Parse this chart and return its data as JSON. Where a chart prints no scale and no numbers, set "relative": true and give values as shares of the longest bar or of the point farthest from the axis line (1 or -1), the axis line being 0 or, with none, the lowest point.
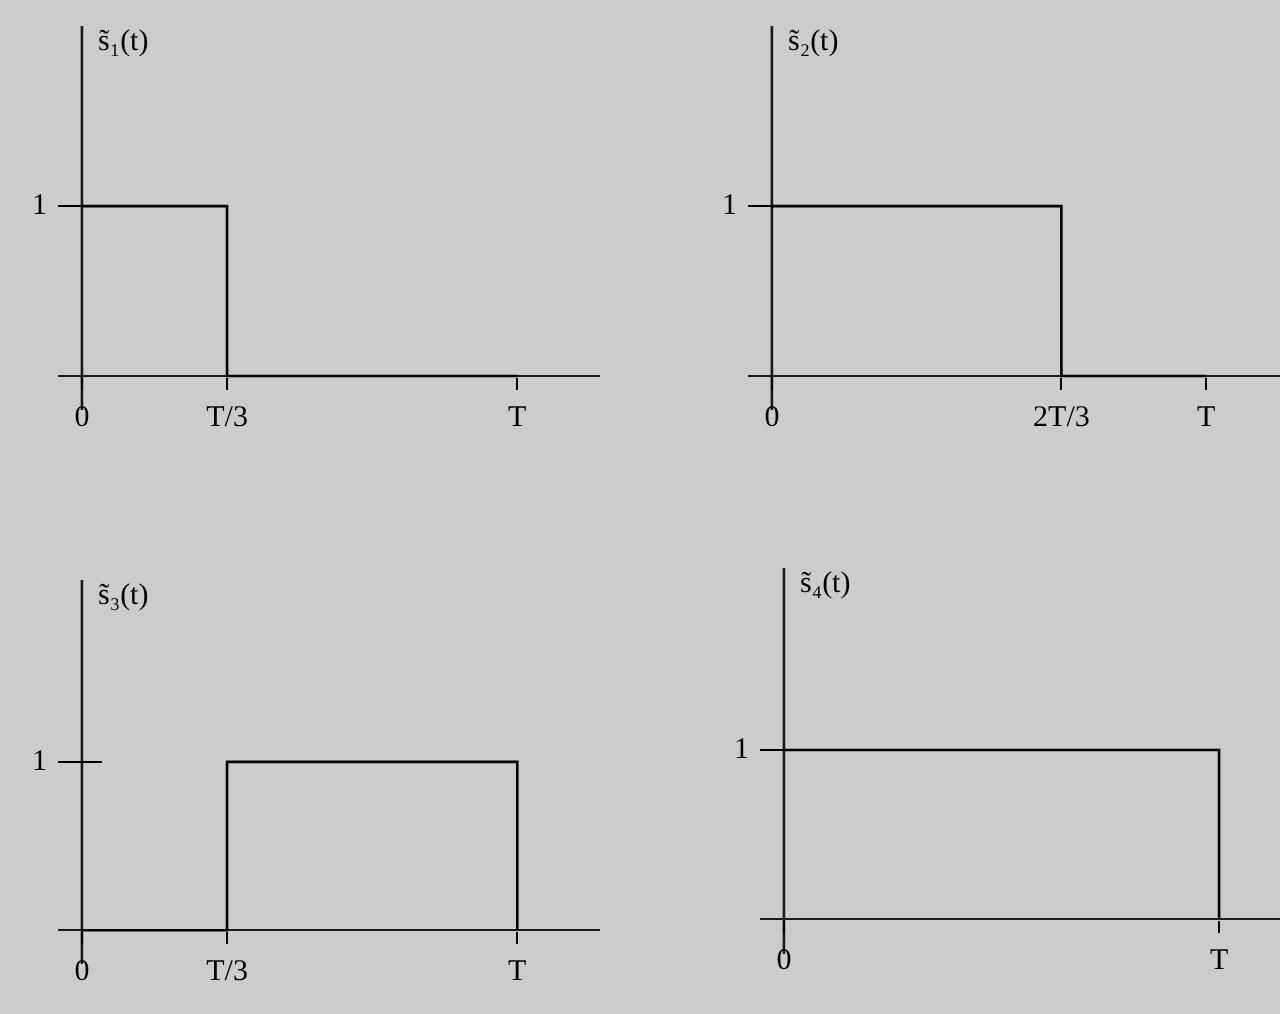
{
  "chart_data": [
    {
      "type": "step",
      "relative": true,
      "ylabel": "s̃₁(t)",
      "categories": [
        "0",
        "T/3",
        null,
        "T"
      ],
      "values": [
        1,
        0,
        0,
        0
      ],
      "color": "#000000",
      "annotations": [
        "1"
      ]
    },
    {
      "type": "step",
      "relative": true,
      "ylabel": "s̃₂(t)",
      "categories": [
        "0",
        null,
        "2T/3",
        "T"
      ],
      "values": [
        1,
        1,
        0,
        0
      ],
      "color": "#000000",
      "annotations": [
        "1"
      ]
    },
    {
      "type": "step",
      "relative": true,
      "ylabel": "s̃₃(t)",
      "categories": [
        "0",
        "T/3",
        null,
        "T"
      ],
      "values": [
        0,
        1,
        1,
        0
      ],
      "color": "#000000",
      "annotations": [
        "1"
      ]
    },
    {
      "type": "step",
      "relative": true,
      "ylabel": "s̃₄(t)",
      "categories": [
        "0",
        null,
        null,
        "T"
      ],
      "values": [
        1,
        1,
        1,
        0
      ],
      "color": "#000000",
      "annotations": [
        "1"
      ]
    }
  ]
}
